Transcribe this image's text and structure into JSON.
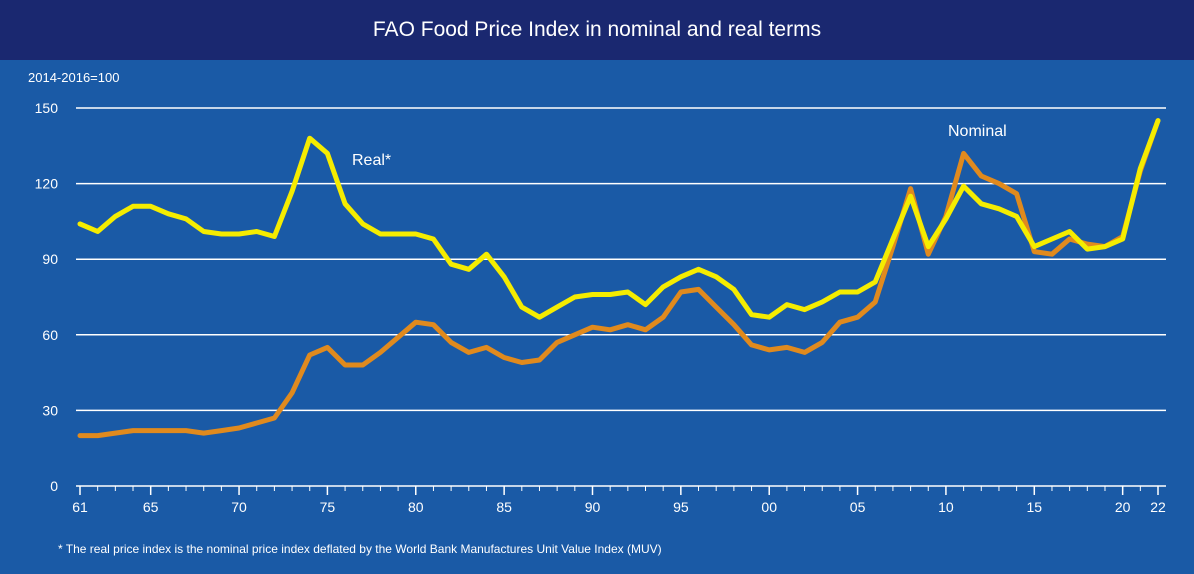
{
  "chart_data": {
    "type": "line",
    "title": "FAO Food Price Index in nominal and real terms",
    "unit_label": "2014-2016=100",
    "ylim": [
      0,
      150
    ],
    "yticks": [
      0,
      30,
      60,
      90,
      120,
      150
    ],
    "xlim": [
      1961,
      2022
    ],
    "x_ticks": [
      {
        "x": 1961,
        "label": "61"
      },
      {
        "x": 1965,
        "label": "65"
      },
      {
        "x": 1970,
        "label": "70"
      },
      {
        "x": 1975,
        "label": "75"
      },
      {
        "x": 1980,
        "label": "80"
      },
      {
        "x": 1985,
        "label": "85"
      },
      {
        "x": 1990,
        "label": "90"
      },
      {
        "x": 1995,
        "label": "95"
      },
      {
        "x": 2000,
        "label": "00"
      },
      {
        "x": 2005,
        "label": "05"
      },
      {
        "x": 2010,
        "label": "10"
      },
      {
        "x": 2015,
        "label": "15"
      },
      {
        "x": 2020,
        "label": "20"
      },
      {
        "x": 2022,
        "label": "22"
      }
    ],
    "x": [
      1961,
      1962,
      1963,
      1964,
      1965,
      1966,
      1967,
      1968,
      1969,
      1970,
      1971,
      1972,
      1973,
      1974,
      1975,
      1976,
      1977,
      1978,
      1979,
      1980,
      1981,
      1982,
      1983,
      1984,
      1985,
      1986,
      1987,
      1988,
      1989,
      1990,
      1991,
      1992,
      1993,
      1994,
      1995,
      1996,
      1997,
      1998,
      1999,
      2000,
      2001,
      2002,
      2003,
      2004,
      2005,
      2006,
      2007,
      2008,
      2009,
      2010,
      2011,
      2012,
      2013,
      2014,
      2015,
      2016,
      2017,
      2018,
      2019,
      2020,
      2021,
      2022
    ],
    "series": [
      {
        "name": "Real*",
        "color": "#f5ec00",
        "values": [
          104,
          101,
          107,
          111,
          111,
          108,
          106,
          101,
          100,
          100,
          101,
          99,
          117,
          138,
          132,
          112,
          104,
          100,
          100,
          100,
          98,
          88,
          86,
          92,
          83,
          71,
          67,
          71,
          75,
          76,
          76,
          77,
          72,
          79,
          83,
          86,
          83,
          78,
          68,
          67,
          72,
          70,
          73,
          77,
          77,
          81,
          98,
          115,
          95,
          106,
          119,
          112,
          110,
          107,
          95,
          98,
          101,
          94,
          95,
          98,
          126,
          145
        ]
      },
      {
        "name": "Nominal",
        "color": "#e08a1e",
        "values": [
          20,
          20,
          21,
          22,
          22,
          22,
          22,
          21,
          22,
          23,
          25,
          27,
          37,
          52,
          55,
          48,
          48,
          53,
          59,
          65,
          64,
          57,
          53,
          55,
          51,
          49,
          50,
          57,
          60,
          63,
          62,
          64,
          62,
          67,
          77,
          78,
          71,
          64,
          56,
          54,
          55,
          53,
          57,
          65,
          67,
          73,
          95,
          118,
          92,
          107,
          132,
          123,
          120,
          116,
          93,
          92,
          98,
          96,
          95,
          99,
          125,
          145
        ]
      }
    ],
    "annotations": {
      "real": "Real*",
      "nominal": "Nominal"
    },
    "footnote": "* The real price index is the nominal price index deflated by the World Bank Manufactures Unit Value Index (MUV)",
    "background": "#1a5aa6",
    "title_bar_color": "#1a2870",
    "grid": true
  }
}
